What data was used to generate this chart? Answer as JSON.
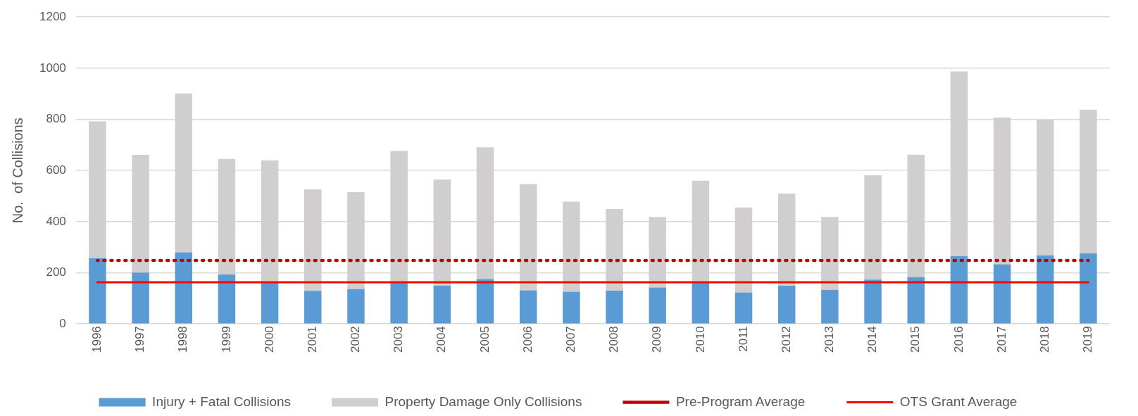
{
  "chart_data": {
    "type": "bar",
    "stacked": true,
    "ylabel": "No.  of Collisions",
    "categories": [
      "1996",
      "1997",
      "1998",
      "1999",
      "2000",
      "2001",
      "2002",
      "2003",
      "2004",
      "2005",
      "2006",
      "2007",
      "2008",
      "2009",
      "2010",
      "2011",
      "2012",
      "2013",
      "2014",
      "2015",
      "2016",
      "2017",
      "2018",
      "2019"
    ],
    "series": [
      {
        "name": "Injury + Fatal Collisions",
        "color": "#5b9bd5",
        "values": [
          257,
          201,
          280,
          193,
          160,
          129,
          136,
          160,
          150,
          175,
          131,
          126,
          130,
          142,
          160,
          123,
          149,
          133,
          173,
          183,
          265,
          233,
          268,
          276
        ]
      },
      {
        "name": "Property Damage Only Collisions",
        "color": "#d0cece",
        "values": [
          535,
          460,
          621,
          452,
          480,
          397,
          379,
          516,
          415,
          516,
          416,
          352,
          319,
          276,
          400,
          332,
          361,
          285,
          408,
          479,
          722,
          574,
          530,
          562
        ]
      },
      {
        "name": "Pre-Program Average",
        "type": "line",
        "line_style": "dotted",
        "color": "#c00000",
        "values": [
          248,
          248,
          248,
          248,
          248,
          248,
          248,
          248,
          248,
          248,
          248,
          248,
          248,
          248,
          248,
          248,
          248,
          248,
          248,
          248,
          248,
          248,
          248,
          248
        ]
      },
      {
        "name": "OTS Grant Average",
        "type": "line",
        "line_style": "solid",
        "color": "#ff0000",
        "values": [
          163,
          163,
          163,
          163,
          163,
          163,
          163,
          163,
          163,
          163,
          163,
          163,
          163,
          163,
          163,
          163,
          163,
          163,
          163,
          163,
          163,
          163,
          163,
          163
        ]
      }
    ],
    "ylim": [
      0,
      1200
    ],
    "yticks": [
      0,
      200,
      400,
      600,
      800,
      1000,
      1200
    ],
    "grid": "y",
    "legend": "bottom",
    "marker": "none"
  }
}
